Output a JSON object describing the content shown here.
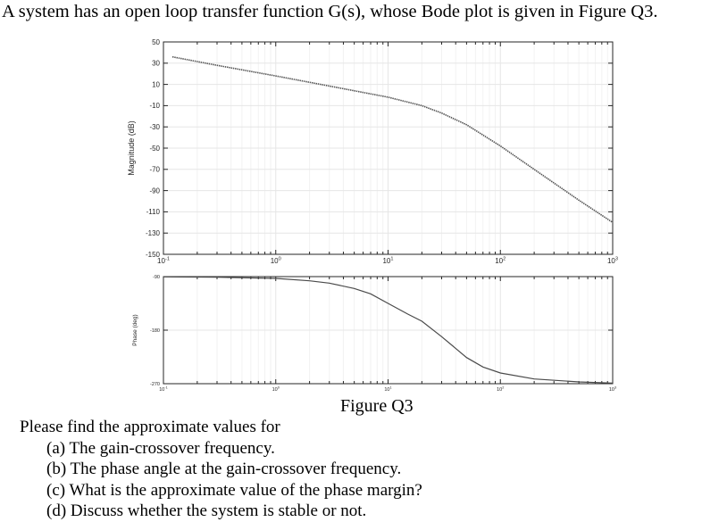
{
  "title": "A system has an open loop transfer function G(s), whose Bode plot is given in Figure Q3.",
  "figure_caption": "Figure Q3",
  "questions": {
    "intro": "Please find the approximate values for",
    "a": "(a) The gain-crossover frequency.",
    "b": "(b) The phase angle at the gain-crossover frequency.",
    "c": "(c) What is the approximate value of the phase margin?",
    "d": "(d) Discuss whether the system is stable or not."
  },
  "chart_data": [
    {
      "type": "line",
      "xscale": "log",
      "xlim": [
        0.1,
        1000
      ],
      "ylim": [
        -150,
        50
      ],
      "ylabel": "Magnitude (dB)",
      "yticks": [
        50,
        30,
        10,
        -10,
        -30,
        -50,
        -70,
        -90,
        -110,
        -130,
        -150
      ],
      "xticks": [
        {
          "base": "10",
          "exp": "-1"
        },
        {
          "base": "10",
          "exp": "0"
        },
        {
          "base": "10",
          "exp": "1"
        },
        {
          "base": "10",
          "exp": "2"
        },
        {
          "base": "10",
          "exp": "3"
        }
      ],
      "grid": true,
      "x": [
        0.12,
        0.3,
        1,
        3,
        10,
        20,
        30,
        50,
        100,
        200,
        500,
        1000
      ],
      "y": [
        36,
        28,
        18,
        8.5,
        -2,
        -10,
        -17,
        -28,
        -48,
        -70,
        -99,
        -120
      ]
    },
    {
      "type": "line",
      "xscale": "log",
      "xlim": [
        0.1,
        1000
      ],
      "ylim": [
        -270,
        -90
      ],
      "ylabel": "Phase (deg)",
      "yticks": [
        -90,
        -180,
        -270
      ],
      "xticks": [
        {
          "base": "10",
          "exp": "-1"
        },
        {
          "base": "10",
          "exp": "0"
        },
        {
          "base": "10",
          "exp": "1"
        },
        {
          "base": "10",
          "exp": "2"
        },
        {
          "base": "10",
          "exp": "3"
        }
      ],
      "grid": true,
      "x": [
        0.1,
        0.3,
        1,
        2,
        3,
        5,
        7,
        10,
        15,
        20,
        30,
        50,
        70,
        100,
        200,
        500,
        1000
      ],
      "y": [
        -90.5,
        -91,
        -93,
        -97,
        -101,
        -110,
        -119,
        -135,
        -153,
        -165,
        -191,
        -226,
        -242,
        -252,
        -262,
        -267,
        -269
      ]
    }
  ]
}
